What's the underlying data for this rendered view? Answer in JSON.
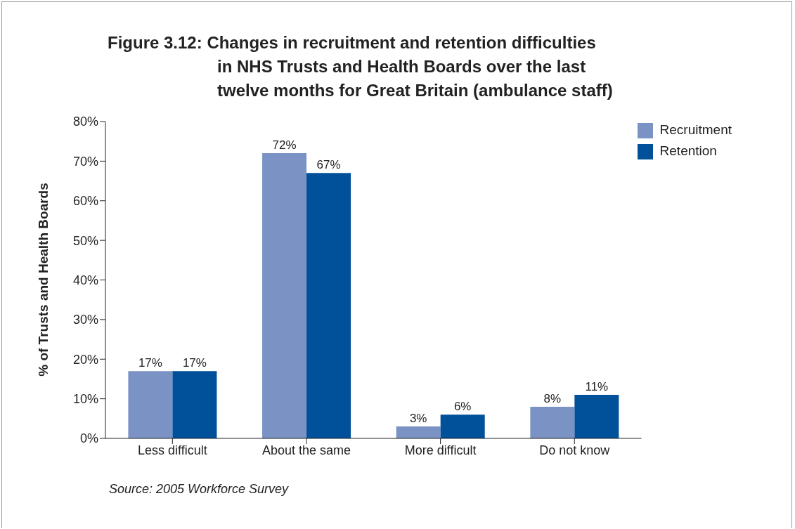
{
  "chart_data": {
    "type": "bar",
    "title": "Figure 3.12: Changes in recruitment and retention difficulties\nin NHS Trusts and Health Boards over the last\ntwelve months for Great Britain (ambulance staff)",
    "ylabel": "% of Trusts and Health Boards",
    "categories": [
      "Less difficult",
      "About the same",
      "More difficult",
      "Do not know"
    ],
    "series": [
      {
        "name": "Recruitment",
        "color": "#7b93c4",
        "values": [
          17,
          72,
          3,
          8
        ],
        "value_labels": [
          "17%",
          "72%",
          "3%",
          "8%"
        ]
      },
      {
        "name": "Retention",
        "color": "#00509a",
        "values": [
          17,
          67,
          6,
          11
        ],
        "value_labels": [
          "17%",
          "67%",
          "6%",
          "11%"
        ]
      }
    ],
    "ylim": [
      0,
      80
    ],
    "yticks": [
      {
        "value": 0,
        "label": "0%"
      },
      {
        "value": 10,
        "label": "10%"
      },
      {
        "value": 20,
        "label": "20%"
      },
      {
        "value": 30,
        "label": "30%"
      },
      {
        "value": 40,
        "label": "40%"
      },
      {
        "value": 50,
        "label": "50%"
      },
      {
        "value": 60,
        "label": "60%"
      },
      {
        "value": 70,
        "label": "70%"
      },
      {
        "value": 80,
        "label": "80%"
      }
    ],
    "grid": false,
    "legend": "top right",
    "annotations": [
      "Source: 2005 Workforce Survey"
    ]
  }
}
